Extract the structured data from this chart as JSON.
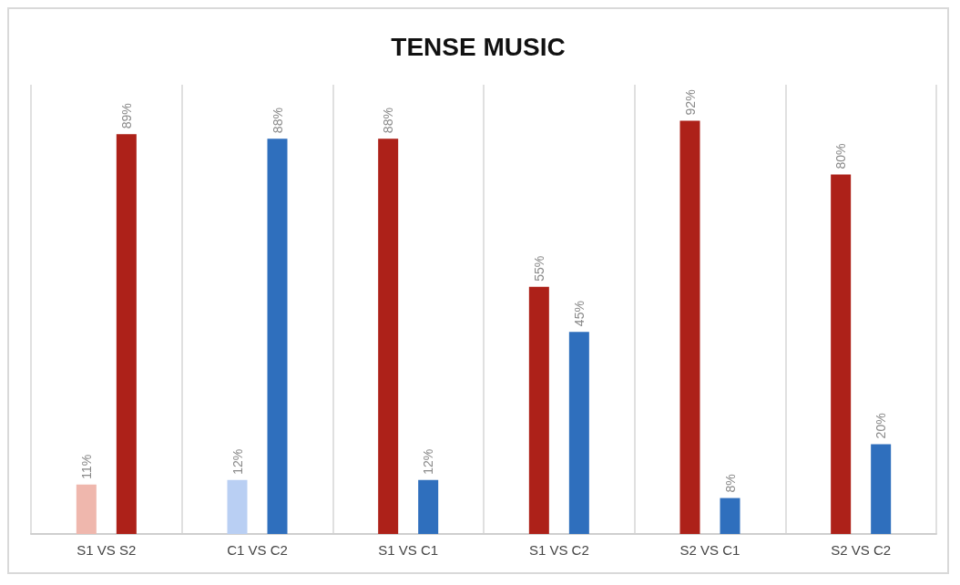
{
  "chart_data": {
    "type": "bar",
    "title": "TENSE MUSIC",
    "categories": [
      "S1 VS S2",
      "C1 VS C2",
      "S1 VS C1",
      "S1 VS C2",
      "S2 VS C1",
      "S2 VS C2"
    ],
    "series": [
      {
        "values": [
          11,
          12,
          88,
          55,
          92,
          80
        ],
        "colors": [
          "#efb7ad",
          "#b9cff3",
          "#ad2119",
          "#ad2119",
          "#ad2119",
          "#ad2119"
        ],
        "value_labels": [
          "11%",
          "12%",
          "88%",
          "55%",
          "92%",
          "80%"
        ]
      },
      {
        "values": [
          89,
          88,
          12,
          45,
          8,
          20
        ],
        "colors": [
          "#ad2119",
          "#2f6fbd",
          "#2f6fbd",
          "#2f6fbd",
          "#2f6fbd",
          "#2f6fbd"
        ],
        "value_labels": [
          "89%",
          "88%",
          "12%",
          "45%",
          "8%",
          "20%"
        ]
      }
    ],
    "ylim": [
      0,
      100
    ],
    "tick_labels": "x",
    "grid": "x"
  }
}
